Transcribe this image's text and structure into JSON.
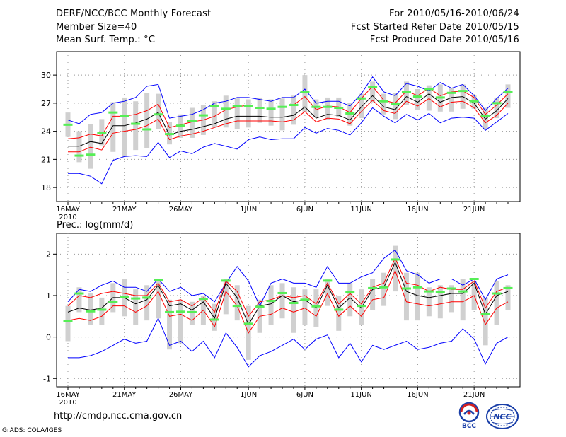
{
  "header": {
    "left": [
      "DERF/NCC/BCC Monthly Forecast",
      "Member Size=40",
      "Mean Surf. Temp.: °C"
    ],
    "right": [
      "For 2010/05/16-2010/06/24",
      "Fcst Started Refer Date 2010/05/15",
      "Fcst Produced Date 2010/05/16"
    ]
  },
  "footer": {
    "url": "http://cmdp.ncc.cma.gov.cn",
    "credit": "GrADS: COLA/IGES"
  },
  "logos": {
    "bcc": "BCC",
    "ncc": "NCC"
  },
  "colors": {
    "upper_lower": "#0000ff",
    "range": "#ff0000",
    "mean": "#000000",
    "observed": "#55ee55",
    "box": "#d0d0d0"
  },
  "chart_data": [
    {
      "type": "line",
      "title": "Mean Surf. Temp.: °C",
      "ylim": [
        16.5,
        32.5
      ],
      "yticks": [
        18,
        21,
        24,
        27,
        30
      ],
      "xticks": [
        {
          "label": "16MAY",
          "day": 0,
          "sub": "2010"
        },
        {
          "label": "21MAY",
          "day": 5
        },
        {
          "label": "26MAY",
          "day": 10
        },
        {
          "label": "1JUN",
          "day": 16
        },
        {
          "label": "6JUN",
          "day": 21
        },
        {
          "label": "11JUN",
          "day": 26
        },
        {
          "label": "16JUN",
          "day": 31
        },
        {
          "label": "21JUN",
          "day": 36
        }
      ],
      "series": [
        {
          "name": "max",
          "values": [
            25.2,
            24.8,
            25.8,
            26.0,
            27.0,
            27.2,
            27.6,
            28.8,
            29.0,
            25.4,
            25.6,
            25.8,
            26.3,
            27.0,
            27.2,
            27.6,
            27.6,
            27.4,
            27.2,
            27.6,
            27.6,
            28.5,
            27.0,
            27.2,
            27.2,
            26.7,
            28.0,
            29.8,
            28.2,
            27.8,
            29.1,
            28.8,
            28.3,
            29.2,
            28.6,
            29.0,
            27.8,
            26.2,
            27.5,
            28.6
          ]
        },
        {
          "name": "upper",
          "values": [
            23.2,
            23.3,
            23.7,
            23.5,
            25.6,
            25.6,
            25.8,
            26.2,
            26.9,
            24.4,
            24.7,
            25.0,
            25.2,
            25.6,
            26.3,
            26.6,
            26.8,
            26.8,
            26.8,
            26.8,
            26.8,
            27.7,
            26.3,
            26.7,
            26.6,
            26.0,
            27.5,
            28.8,
            27.3,
            27.0,
            28.3,
            27.8,
            28.6,
            27.8,
            28.2,
            28.3,
            27.6,
            25.8,
            26.8,
            28.0
          ]
        },
        {
          "name": "mean",
          "values": [
            22.4,
            22.4,
            22.9,
            22.7,
            24.6,
            24.6,
            24.9,
            25.3,
            26.0,
            23.6,
            24.0,
            24.2,
            24.5,
            24.8,
            25.3,
            25.6,
            25.6,
            25.6,
            25.5,
            25.5,
            25.7,
            26.6,
            25.4,
            25.8,
            25.7,
            25.2,
            26.6,
            27.8,
            26.6,
            26.3,
            27.7,
            27.1,
            28.0,
            27.1,
            27.6,
            27.7,
            27.0,
            25.3,
            26.2,
            27.5
          ]
        },
        {
          "name": "lower",
          "values": [
            21.8,
            21.8,
            22.3,
            22.0,
            23.8,
            24.0,
            24.2,
            24.6,
            25.3,
            23.1,
            23.5,
            23.7,
            24.0,
            24.4,
            24.8,
            25.1,
            25.1,
            25.1,
            25.1,
            25.0,
            25.2,
            26.1,
            25.0,
            25.4,
            25.3,
            24.8,
            26.1,
            27.3,
            26.2,
            25.9,
            27.2,
            26.7,
            27.5,
            26.6,
            27.1,
            27.2,
            26.5,
            24.9,
            25.7,
            27.0
          ]
        },
        {
          "name": "min",
          "values": [
            19.5,
            19.5,
            19.2,
            18.4,
            20.9,
            21.3,
            21.4,
            21.3,
            22.8,
            21.2,
            21.9,
            21.6,
            22.3,
            22.7,
            22.4,
            22.1,
            23.1,
            23.4,
            23.1,
            23.2,
            23.2,
            24.4,
            23.8,
            24.3,
            24.1,
            23.6,
            24.9,
            26.5,
            25.6,
            24.9,
            25.8,
            25.2,
            25.9,
            24.9,
            25.4,
            25.5,
            25.4,
            24.1,
            25.0,
            25.9
          ]
        },
        {
          "name": "observed",
          "values": [
            24.7,
            21.4,
            21.5,
            23.8,
            26.0,
            25.6,
            24.8,
            24.2,
            25.8,
            23.7,
            24.6,
            25.1,
            25.7,
            26.7,
            26.4,
            26.7,
            26.7,
            26.5,
            26.4,
            26.6,
            26.8,
            28.2,
            26.6,
            26.6,
            26.5,
            25.9,
            27.5,
            28.7,
            27.2,
            26.9,
            28.2,
            27.7,
            28.5,
            27.6,
            28.1,
            28.3,
            27.2,
            25.6,
            27.0,
            28.2
          ]
        },
        {
          "name": "box_high",
          "values": [
            26.0,
            24.0,
            24.8,
            25.3,
            27.1,
            27.6,
            27.2,
            28.1,
            28.0,
            25.0,
            25.8,
            26.5,
            26.8,
            27.2,
            27.8,
            27.5,
            27.4,
            27.6,
            27.4,
            27.5,
            27.8,
            30.0,
            27.4,
            27.6,
            27.6,
            27.0,
            28.0,
            29.3,
            28.0,
            28.1,
            29.3,
            28.5,
            28.9,
            29.0,
            28.6,
            29.0,
            27.8,
            26.5,
            27.6,
            29.0
          ]
        },
        {
          "name": "box_low",
          "values": [
            23.4,
            20.7,
            20.0,
            22.5,
            21.8,
            21.3,
            22.0,
            22.2,
            24.2,
            22.6,
            23.3,
            23.3,
            23.6,
            24.4,
            24.4,
            24.2,
            24.4,
            24.9,
            24.6,
            24.1,
            24.7,
            26.1,
            25.5,
            25.2,
            25.5,
            24.6,
            25.4,
            27.1,
            25.8,
            25.3,
            26.8,
            26.3,
            26.2,
            26.1,
            26.1,
            26.4,
            26.4,
            24.2,
            25.4,
            26.5
          ]
        }
      ]
    },
    {
      "type": "line",
      "title": "Prec.: log(mm/d)",
      "ylim": [
        -1.2,
        2.5
      ],
      "yticks": [
        -1,
        0,
        1,
        2
      ],
      "xticks": [
        {
          "label": "16MAY",
          "day": 0,
          "sub": "2010"
        },
        {
          "label": "21MAY",
          "day": 5
        },
        {
          "label": "26MAY",
          "day": 10
        },
        {
          "label": "1JUN",
          "day": 16
        },
        {
          "label": "6JUN",
          "day": 21
        },
        {
          "label": "11JUN",
          "day": 26
        },
        {
          "label": "16JUN",
          "day": 31
        },
        {
          "label": "21JUN",
          "day": 36
        }
      ],
      "series": [
        {
          "name": "max",
          "values": [
            0.85,
            1.15,
            1.1,
            1.25,
            1.35,
            1.2,
            1.2,
            1.1,
            1.4,
            1.1,
            1.2,
            1.0,
            1.05,
            0.85,
            1.3,
            1.7,
            1.35,
            0.75,
            1.3,
            1.4,
            1.3,
            1.3,
            1.2,
            1.7,
            1.3,
            1.3,
            1.45,
            1.55,
            1.9,
            2.1,
            1.6,
            1.5,
            1.3,
            1.4,
            1.4,
            1.25,
            1.4,
            0.9,
            1.4,
            1.5
          ]
        },
        {
          "name": "upper",
          "values": [
            0.75,
            1.0,
            0.95,
            1.05,
            1.1,
            1.05,
            1.0,
            1.0,
            1.3,
            0.85,
            0.9,
            0.75,
            0.95,
            0.6,
            1.35,
            1.1,
            0.5,
            0.85,
            0.9,
            1.0,
            0.95,
            1.0,
            0.8,
            1.3,
            0.8,
            1.05,
            0.8,
            1.2,
            1.3,
            1.9,
            1.3,
            1.25,
            1.1,
            1.2,
            1.15,
            1.15,
            1.35,
            0.7,
            1.1,
            1.2
          ]
        },
        {
          "name": "mean",
          "values": [
            0.6,
            0.7,
            0.65,
            0.7,
            0.95,
            0.95,
            0.8,
            0.9,
            1.25,
            0.75,
            0.8,
            0.65,
            0.85,
            0.45,
            1.3,
            0.95,
            0.3,
            0.75,
            0.8,
            1.0,
            0.85,
            0.9,
            0.7,
            1.25,
            0.7,
            0.95,
            0.7,
            1.15,
            1.2,
            1.8,
            1.1,
            1.0,
            0.95,
            1.0,
            1.05,
            1.05,
            1.3,
            0.55,
            1.0,
            1.1
          ]
        },
        {
          "name": "lower",
          "values": [
            0.4,
            0.45,
            0.4,
            0.5,
            0.75,
            0.75,
            0.6,
            0.75,
            1.1,
            0.5,
            0.55,
            0.4,
            0.65,
            0.25,
            1.1,
            0.75,
            0.1,
            0.5,
            0.55,
            0.7,
            0.6,
            0.7,
            0.5,
            1.05,
            0.5,
            0.75,
            0.5,
            0.9,
            0.95,
            1.6,
            0.85,
            0.8,
            0.75,
            0.8,
            0.85,
            0.85,
            1.0,
            0.3,
            0.7,
            0.85
          ]
        },
        {
          "name": "min",
          "values": [
            -0.5,
            -0.5,
            -0.45,
            -0.35,
            -0.2,
            -0.05,
            -0.15,
            -0.1,
            0.45,
            -0.2,
            -0.1,
            -0.35,
            -0.1,
            -0.5,
            0.1,
            -0.25,
            -0.72,
            -0.45,
            -0.35,
            -0.2,
            -0.05,
            -0.3,
            -0.05,
            0.05,
            -0.5,
            -0.15,
            -0.6,
            -0.2,
            -0.3,
            -0.2,
            -0.1,
            -0.3,
            -0.25,
            -0.15,
            -0.1,
            0.2,
            -0.05,
            -0.65,
            -0.15,
            0.0
          ]
        },
        {
          "name": "observed",
          "values": [
            0.38,
            1.05,
            0.62,
            0.66,
            0.85,
            0.97,
            0.93,
            0.95,
            1.38,
            0.6,
            0.61,
            0.6,
            0.92,
            0.42,
            1.36,
            0.75,
            0.32,
            0.73,
            0.87,
            1.06,
            0.82,
            0.9,
            0.74,
            1.36,
            0.66,
            1.08,
            0.75,
            1.18,
            1.2,
            1.87,
            1.17,
            1.2,
            1.1,
            1.08,
            1.17,
            1.1,
            1.4,
            0.55,
            1.05,
            1.18
          ]
        },
        {
          "name": "box_high",
          "values": [
            0.75,
            1.2,
            1.05,
            0.95,
            1.3,
            1.4,
            1.15,
            1.25,
            1.4,
            0.9,
            0.9,
            0.85,
            1.0,
            0.8,
            1.4,
            1.25,
            0.75,
            0.9,
            1.25,
            1.3,
            1.2,
            1.15,
            1.15,
            1.4,
            1.0,
            1.3,
            1.15,
            1.4,
            1.55,
            2.2,
            1.55,
            1.55,
            1.2,
            1.25,
            1.25,
            1.4,
            1.35,
            0.95,
            1.35,
            1.25
          ]
        },
        {
          "name": "box_low",
          "values": [
            -0.1,
            0.6,
            0.3,
            0.3,
            0.6,
            0.5,
            0.3,
            0.4,
            0.45,
            -0.3,
            -0.15,
            0.3,
            0.3,
            0.15,
            0.55,
            0.4,
            -0.55,
            0.1,
            0.3,
            0.45,
            0.1,
            0.3,
            0.25,
            0.75,
            0.15,
            0.5,
            0.3,
            0.65,
            0.75,
            1.1,
            0.4,
            0.4,
            0.5,
            0.45,
            0.6,
            0.4,
            0.65,
            -0.2,
            0.3,
            0.65
          ]
        }
      ]
    }
  ]
}
